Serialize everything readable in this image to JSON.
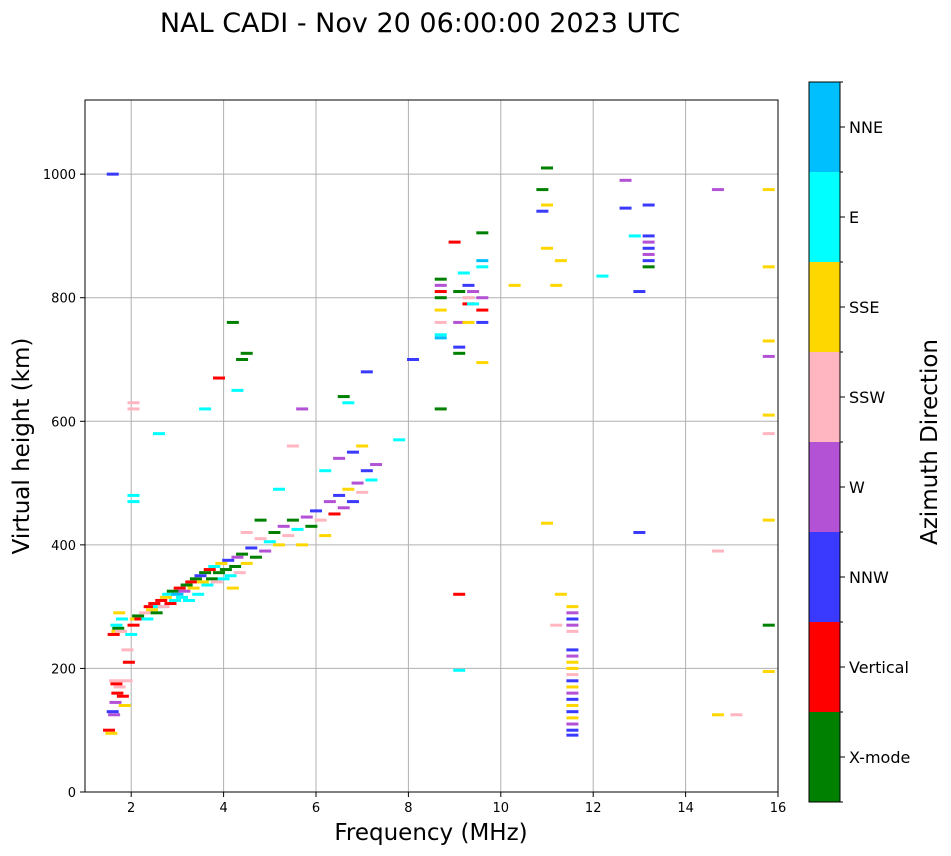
{
  "chart_data": {
    "type": "scatter",
    "title": "NAL CADI - Nov 20 06:00:00 2023 UTC",
    "xlabel": "Frequency (MHz)",
    "ylabel": "Virtual height (km)",
    "xlim": [
      1,
      16
    ],
    "ylim": [
      0,
      1120
    ],
    "xticks": [
      2,
      4,
      6,
      8,
      10,
      12,
      14,
      16
    ],
    "yticks": [
      0,
      200,
      400,
      600,
      800,
      1000
    ],
    "grid": true,
    "colorbar": {
      "title": "Azimuth Direction",
      "categories": [
        {
          "name": "X-mode",
          "color": "#008000"
        },
        {
          "name": "Vertical",
          "color": "#ff0000"
        },
        {
          "name": "NNW",
          "color": "#3a3aff"
        },
        {
          "name": "W",
          "color": "#b452d6"
        },
        {
          "name": "SSW",
          "color": "#ffb6c1"
        },
        {
          "name": "SSE",
          "color": "#ffd700"
        },
        {
          "name": "E",
          "color": "#00ffff"
        },
        {
          "name": "NNE",
          "color": "#00bfff"
        }
      ]
    },
    "echo_segments": [
      [
        1.52,
        100,
        1
      ],
      [
        1.57,
        95,
        5
      ],
      [
        1.6,
        130,
        2
      ],
      [
        1.63,
        125,
        3
      ],
      [
        1.65,
        180,
        4
      ],
      [
        1.68,
        175,
        1
      ],
      [
        1.62,
        255,
        1
      ],
      [
        1.7,
        260,
        5
      ],
      [
        1.72,
        265,
        0
      ],
      [
        1.68,
        270,
        6
      ],
      [
        1.78,
        260,
        4
      ],
      [
        1.74,
        290,
        5
      ],
      [
        1.8,
        280,
        6
      ],
      [
        1.66,
        145,
        3
      ],
      [
        1.7,
        160,
        1
      ],
      [
        1.75,
        170,
        4
      ],
      [
        1.82,
        155,
        1
      ],
      [
        1.86,
        140,
        5
      ],
      [
        1.9,
        180,
        4
      ],
      [
        1.95,
        210,
        1
      ],
      [
        1.92,
        230,
        4
      ],
      [
        2.05,
        270,
        1
      ],
      [
        2.1,
        280,
        5
      ],
      [
        2.0,
        255,
        6
      ],
      [
        2.15,
        285,
        0
      ],
      [
        2.2,
        280,
        1
      ],
      [
        2.3,
        290,
        4
      ],
      [
        2.4,
        300,
        1
      ],
      [
        2.35,
        280,
        6
      ],
      [
        2.45,
        295,
        5
      ],
      [
        2.5,
        305,
        1
      ],
      [
        2.55,
        290,
        0
      ],
      [
        2.6,
        300,
        6
      ],
      [
        2.65,
        310,
        1
      ],
      [
        2.7,
        300,
        4
      ],
      [
        2.75,
        315,
        5
      ],
      [
        2.8,
        320,
        6
      ],
      [
        2.85,
        305,
        1
      ],
      [
        2.9,
        325,
        0
      ],
      [
        2.95,
        310,
        6
      ],
      [
        3.0,
        320,
        7
      ],
      [
        3.05,
        330,
        1
      ],
      [
        3.1,
        315,
        6
      ],
      [
        3.15,
        325,
        3
      ],
      [
        3.2,
        335,
        0
      ],
      [
        3.25,
        310,
        6
      ],
      [
        3.3,
        340,
        1
      ],
      [
        3.35,
        330,
        5
      ],
      [
        3.4,
        345,
        0
      ],
      [
        3.45,
        320,
        6
      ],
      [
        3.5,
        350,
        2
      ],
      [
        3.55,
        340,
        5
      ],
      [
        3.6,
        355,
        0
      ],
      [
        3.65,
        335,
        6
      ],
      [
        3.7,
        360,
        1
      ],
      [
        3.75,
        345,
        0
      ],
      [
        3.8,
        365,
        6
      ],
      [
        3.85,
        340,
        4
      ],
      [
        3.9,
        355,
        0
      ],
      [
        3.95,
        370,
        5
      ],
      [
        4.0,
        345,
        6
      ],
      [
        4.05,
        360,
        0
      ],
      [
        4.1,
        375,
        2
      ],
      [
        4.15,
        350,
        6
      ],
      [
        4.2,
        330,
        5
      ],
      [
        4.25,
        365,
        0
      ],
      [
        4.3,
        380,
        3
      ],
      [
        4.35,
        355,
        4
      ],
      [
        4.4,
        385,
        0
      ],
      [
        4.5,
        370,
        5
      ],
      [
        4.6,
        395,
        2
      ],
      [
        4.7,
        380,
        0
      ],
      [
        4.8,
        410,
        4
      ],
      [
        4.9,
        390,
        3
      ],
      [
        5.0,
        405,
        6
      ],
      [
        5.1,
        420,
        0
      ],
      [
        5.2,
        400,
        5
      ],
      [
        5.3,
        430,
        3
      ],
      [
        5.4,
        415,
        4
      ],
      [
        5.5,
        440,
        0
      ],
      [
        5.6,
        425,
        6
      ],
      [
        5.7,
        400,
        5
      ],
      [
        5.8,
        445,
        3
      ],
      [
        5.9,
        430,
        0
      ],
      [
        6.0,
        455,
        2
      ],
      [
        6.1,
        440,
        4
      ],
      [
        6.2,
        415,
        5
      ],
      [
        6.3,
        470,
        3
      ],
      [
        6.4,
        450,
        1
      ],
      [
        6.5,
        480,
        2
      ],
      [
        6.6,
        460,
        3
      ],
      [
        6.7,
        490,
        5
      ],
      [
        6.8,
        470,
        2
      ],
      [
        6.9,
        500,
        3
      ],
      [
        7.0,
        485,
        4
      ],
      [
        7.1,
        520,
        2
      ],
      [
        7.2,
        505,
        6
      ],
      [
        7.3,
        530,
        3
      ],
      [
        6.2,
        520,
        6
      ],
      [
        6.5,
        540,
        3
      ],
      [
        6.8,
        550,
        2
      ],
      [
        7.0,
        560,
        5
      ],
      [
        5.5,
        560,
        4
      ],
      [
        5.2,
        490,
        6
      ],
      [
        4.8,
        440,
        0
      ],
      [
        4.5,
        420,
        4
      ],
      [
        6.6,
        640,
        0
      ],
      [
        6.7,
        630,
        6
      ],
      [
        5.7,
        620,
        3
      ],
      [
        4.3,
        650,
        6
      ],
      [
        4.4,
        700,
        0
      ],
      [
        4.5,
        710,
        0
      ],
      [
        3.9,
        670,
        1
      ],
      [
        4.2,
        760,
        0
      ],
      [
        3.6,
        620,
        6
      ],
      [
        2.6,
        580,
        6
      ],
      [
        2.05,
        470,
        6
      ],
      [
        2.05,
        480,
        6
      ],
      [
        2.05,
        620,
        4
      ],
      [
        2.05,
        630,
        4
      ],
      [
        7.1,
        680,
        2
      ],
      [
        8.1,
        700,
        2
      ],
      [
        7.8,
        570,
        6
      ],
      [
        8.7,
        800,
        0
      ],
      [
        8.7,
        810,
        1
      ],
      [
        8.7,
        820,
        3
      ],
      [
        8.7,
        830,
        0
      ],
      [
        8.7,
        780,
        5
      ],
      [
        8.7,
        760,
        4
      ],
      [
        8.7,
        740,
        6
      ],
      [
        8.7,
        735,
        7
      ],
      [
        8.7,
        620,
        0
      ],
      [
        9.0,
        890,
        1
      ],
      [
        9.1,
        810,
        0
      ],
      [
        9.1,
        760,
        3
      ],
      [
        9.1,
        720,
        2
      ],
      [
        9.1,
        710,
        0
      ],
      [
        9.2,
        840,
        6
      ],
      [
        9.3,
        790,
        1
      ],
      [
        9.3,
        800,
        4
      ],
      [
        9.3,
        820,
        2
      ],
      [
        9.3,
        760,
        5
      ],
      [
        9.4,
        790,
        6
      ],
      [
        9.4,
        810,
        3
      ],
      [
        9.6,
        850,
        6
      ],
      [
        9.6,
        860,
        7
      ],
      [
        9.6,
        780,
        1
      ],
      [
        9.6,
        760,
        2
      ],
      [
        9.6,
        800,
        3
      ],
      [
        9.6,
        695,
        5
      ],
      [
        9.6,
        905,
        0
      ],
      [
        10.3,
        820,
        5
      ],
      [
        10.9,
        940,
        2
      ],
      [
        10.9,
        975,
        0
      ],
      [
        11.0,
        1010,
        0
      ],
      [
        11.0,
        880,
        5
      ],
      [
        11.0,
        950,
        5
      ],
      [
        11.2,
        820,
        5
      ],
      [
        11.3,
        860,
        5
      ],
      [
        12.2,
        835,
        6
      ],
      [
        12.7,
        945,
        2
      ],
      [
        12.7,
        990,
        3
      ],
      [
        12.9,
        900,
        6
      ],
      [
        13.0,
        810,
        2
      ],
      [
        13.2,
        950,
        2
      ],
      [
        13.2,
        900,
        2
      ],
      [
        13.2,
        890,
        3
      ],
      [
        13.2,
        880,
        2
      ],
      [
        13.2,
        870,
        3
      ],
      [
        13.2,
        860,
        2
      ],
      [
        13.2,
        850,
        0
      ],
      [
        14.7,
        975,
        3
      ],
      [
        15.8,
        975,
        5
      ],
      [
        15.8,
        850,
        5
      ],
      [
        15.8,
        730,
        5
      ],
      [
        15.8,
        705,
        3
      ],
      [
        15.8,
        610,
        5
      ],
      [
        15.8,
        580,
        4
      ],
      [
        15.8,
        440,
        5
      ],
      [
        15.8,
        270,
        0
      ],
      [
        15.8,
        195,
        5
      ],
      [
        14.7,
        390,
        4
      ],
      [
        14.7,
        125,
        5
      ],
      [
        15.1,
        125,
        4
      ],
      [
        13.0,
        420,
        2
      ],
      [
        11.0,
        435,
        5
      ],
      [
        9.1,
        320,
        1
      ],
      [
        9.1,
        197,
        6
      ],
      [
        11.3,
        320,
        5
      ],
      [
        11.2,
        270,
        4
      ],
      [
        1.6,
        1000,
        2
      ],
      [
        11.55,
        300,
        5
      ],
      [
        11.55,
        290,
        3
      ],
      [
        11.55,
        280,
        2
      ],
      [
        11.55,
        270,
        3
      ],
      [
        11.55,
        260,
        4
      ],
      [
        11.55,
        230,
        2
      ],
      [
        11.55,
        220,
        3
      ],
      [
        11.55,
        210,
        5
      ],
      [
        11.55,
        200,
        5
      ],
      [
        11.55,
        190,
        4
      ],
      [
        11.55,
        180,
        2
      ],
      [
        11.55,
        170,
        5
      ],
      [
        11.55,
        160,
        3
      ],
      [
        11.55,
        150,
        2
      ],
      [
        11.55,
        140,
        5
      ],
      [
        11.55,
        130,
        2
      ],
      [
        11.55,
        120,
        5
      ],
      [
        11.55,
        110,
        3
      ],
      [
        11.55,
        100,
        2
      ],
      [
        11.55,
        92,
        2
      ]
    ]
  }
}
